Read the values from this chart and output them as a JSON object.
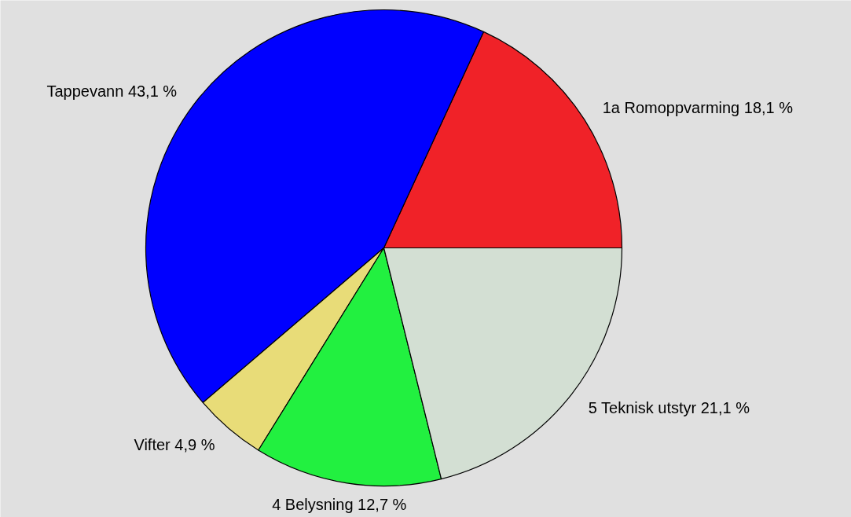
{
  "chart_data": {
    "type": "pie",
    "categories": [
      "1a Romoppvarming",
      "Tappevann",
      "Vifter",
      "4   Belysning",
      "5   Teknisk utstyr"
    ],
    "values": [
      18.1,
      43.1,
      4.9,
      12.7,
      21.1
    ],
    "value_labels": [
      "18,1 %",
      "43,1 %",
      "4,9 %",
      "12,7 %",
      "21,1 %"
    ],
    "colors": [
      "#f02228",
      "#0000ff",
      "#e8dc78",
      "#22f040",
      "#d3dfd3"
    ]
  }
}
